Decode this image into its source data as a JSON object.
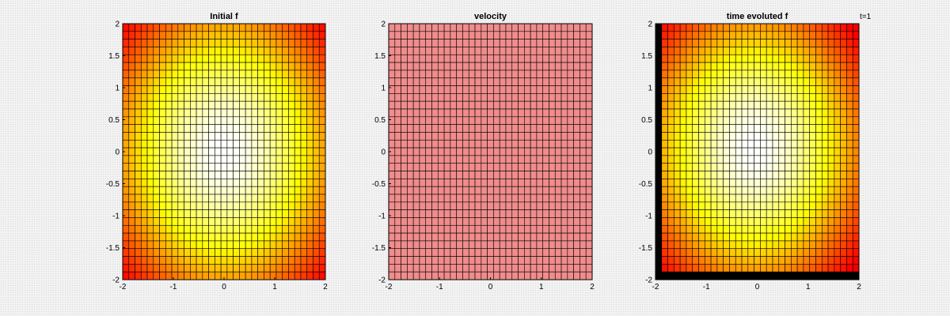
{
  "figure": {
    "background_color": "#f2f2f2"
  },
  "chart_data": [
    {
      "type": "heatmap",
      "title": "Initial f",
      "colormap": "hot",
      "xlim": [
        -2,
        2
      ],
      "ylim": [
        -2,
        2
      ],
      "grid_cells": [
        33,
        33
      ],
      "xticks": [
        -2,
        -1,
        0,
        1,
        2
      ],
      "yticks": [
        2,
        1.5,
        1,
        0.5,
        0,
        -0.5,
        -1,
        -1.5,
        -2
      ],
      "function": "f(x,y) = exp(-(x^2+y^2)/8), peak 1 at (0,0)",
      "annotation": ""
    },
    {
      "type": "heatmap",
      "title": "velocity",
      "colormap": "uniform",
      "uniform_color": "#f08c8c",
      "xlim": [
        -2,
        2
      ],
      "ylim": [
        -2,
        2
      ],
      "grid_cells": [
        33,
        33
      ],
      "xticks": [
        -2,
        -1,
        0,
        1,
        2
      ],
      "yticks": [
        2,
        1.5,
        1,
        0.5,
        0,
        -0.5,
        -1,
        -1.5,
        -2
      ],
      "annotation": ""
    },
    {
      "type": "heatmap",
      "title": "time evoluted f",
      "colormap": "hot",
      "xlim": [
        -2,
        2
      ],
      "ylim": [
        -2,
        2
      ],
      "grid_cells": [
        33,
        33
      ],
      "xticks": [
        -2,
        -1,
        0,
        1,
        2
      ],
      "yticks": [
        2,
        1.5,
        1,
        0.5,
        0,
        -0.5,
        -1,
        -1.5,
        -2
      ],
      "function": "shifted Gaussian; zero-valued column at x=-2 and row at y=-2",
      "annotation": "t=1"
    }
  ]
}
